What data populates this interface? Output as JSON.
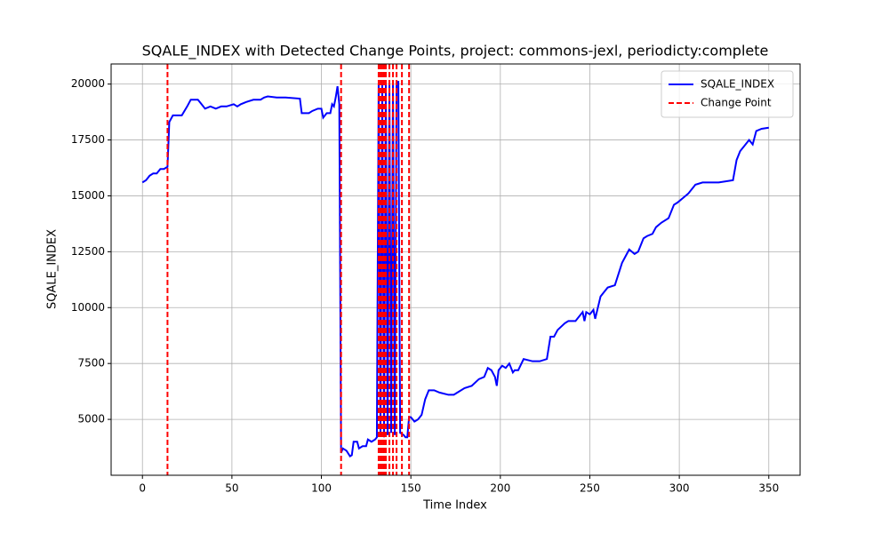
{
  "chart_data": {
    "type": "line",
    "title": "SQALE_INDEX with Detected Change Points, project: commons-jexl, periodicty:complete",
    "x_label": "Time Index",
    "y_label": "SQALE_INDEX",
    "xlim": [
      -17.5,
      367.5
    ],
    "ylim": [
      2500,
      20900
    ],
    "xticks": [
      0,
      50,
      100,
      150,
      200,
      250,
      300,
      350
    ],
    "yticks": [
      5000,
      7500,
      10000,
      12500,
      15000,
      17500,
      20000
    ],
    "grid": true,
    "legend": "upper right",
    "series": [
      {
        "name": "SQALE_INDEX",
        "color": "#0000ff",
        "x": [
          0,
          2,
          4,
          6,
          8,
          10,
          12,
          14,
          15,
          17,
          20,
          22,
          25,
          27,
          29,
          31,
          33,
          35,
          38,
          41,
          44,
          47,
          51,
          53,
          55,
          58,
          62,
          66,
          68,
          70,
          75,
          80,
          88,
          89,
          93,
          95,
          98,
          100,
          101,
          103,
          105,
          106,
          107,
          108,
          109,
          110,
          111,
          112,
          114,
          116,
          117,
          118,
          120,
          121,
          123,
          125,
          126,
          128,
          130,
          131,
          132,
          133,
          134,
          135,
          136,
          137,
          138,
          139,
          140,
          141,
          142,
          143,
          144,
          146,
          147,
          148,
          149,
          150,
          152,
          154,
          156,
          158,
          160,
          163,
          166,
          171,
          174,
          176,
          180,
          184,
          188,
          191,
          193,
          195,
          197,
          198,
          199,
          201,
          203,
          205,
          207,
          208,
          210,
          213,
          218,
          222,
          226,
          228,
          230,
          232,
          236,
          238,
          242,
          246,
          247,
          248,
          250,
          252,
          253,
          256,
          258,
          260,
          264,
          268,
          270,
          272,
          275,
          277,
          280,
          282,
          285,
          287,
          290,
          294,
          297,
          299,
          302,
          305,
          309,
          313,
          316,
          318,
          322,
          330,
          332,
          334,
          337,
          339,
          341,
          343,
          346,
          350
        ],
        "values": [
          15600,
          15700,
          15900,
          16000,
          16000,
          16200,
          16200,
          16300,
          18300,
          18600,
          18600,
          18600,
          19000,
          19300,
          19300,
          19300,
          19100,
          18900,
          19000,
          18900,
          19000,
          19000,
          19100,
          19000,
          19100,
          19200,
          19300,
          19300,
          19400,
          19450,
          19400,
          19400,
          19350,
          18700,
          18700,
          18800,
          18900,
          18900,
          18500,
          18700,
          18700,
          19100,
          19000,
          19400,
          19900,
          19100,
          3500,
          3700,
          3600,
          3350,
          3400,
          4000,
          4000,
          3700,
          3800,
          3800,
          4100,
          4000,
          4100,
          4200,
          20000,
          4300,
          20000,
          4200,
          20000,
          4300,
          20000,
          4400,
          20000,
          4300,
          20100,
          20100,
          4400,
          4300,
          4200,
          4200,
          5100,
          5100,
          4900,
          5000,
          5200,
          5900,
          6300,
          6300,
          6200,
          6100,
          6100,
          6200,
          6400,
          6500,
          6800,
          6900,
          7300,
          7200,
          6900,
          6500,
          7200,
          7400,
          7300,
          7500,
          7100,
          7200,
          7200,
          7700,
          7600,
          7600,
          7700,
          8700,
          8700,
          9000,
          9300,
          9400,
          9400,
          9800,
          9400,
          9800,
          9700,
          9900,
          9500,
          10500,
          10700,
          10900,
          11000,
          12000,
          12300,
          12600,
          12400,
          12500,
          13100,
          13200,
          13300,
          13600,
          13800,
          14000,
          14600,
          14700,
          14900,
          15100,
          15500,
          15600,
          15600,
          15600,
          15600,
          15700,
          16600,
          17000,
          17300,
          17500,
          17300,
          17900,
          18000,
          18050
        ]
      }
    ],
    "change_points": {
      "name": "Change Point",
      "color": "#ff0000",
      "x": [
        14,
        111,
        132,
        133,
        134,
        135,
        136,
        138,
        140,
        142,
        145,
        149
      ]
    }
  }
}
